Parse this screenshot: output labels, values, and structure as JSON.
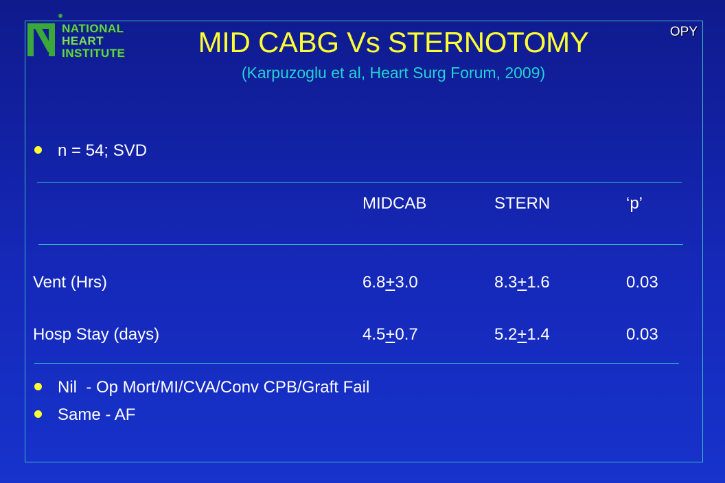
{
  "header": {
    "logo_lines": [
      "NATIONAL",
      "HEART",
      "INSTITUTE"
    ],
    "tag": "OPY",
    "title": "MID CABG Vs STERNOTOMY",
    "subtitle": "(Karpuzoglu et al, Heart Surg Forum, 2009)"
  },
  "intro_bullet": "n = 54; SVD",
  "table": {
    "columns": [
      "MIDCAB",
      "STERN",
      "‘p’"
    ],
    "rows": [
      {
        "label": "Vent (Hrs)",
        "midcab": {
          "mean": "6.8",
          "pm": "+",
          "sd": "3.0"
        },
        "stern": {
          "mean": "8.3",
          "pm": "+",
          "sd": "1.6"
        },
        "p": "0.03"
      },
      {
        "label": "Hosp Stay (days)",
        "midcab": {
          "mean": "4.5",
          "pm": "+",
          "sd": "0.7"
        },
        "stern": {
          "mean": "5.2",
          "pm": "+",
          "sd": "1.4"
        },
        "p": "0.03"
      }
    ]
  },
  "bullets": [
    "Nil  - Op Mort/MI/CVA/Conv CPB/Graft Fail",
    "Same - AF"
  ],
  "colors": {
    "background": "#1528b8",
    "title": "#ffff33",
    "subtitle": "#22d3d3",
    "rule": "#34c0c8",
    "logo": "#5fd35a"
  }
}
